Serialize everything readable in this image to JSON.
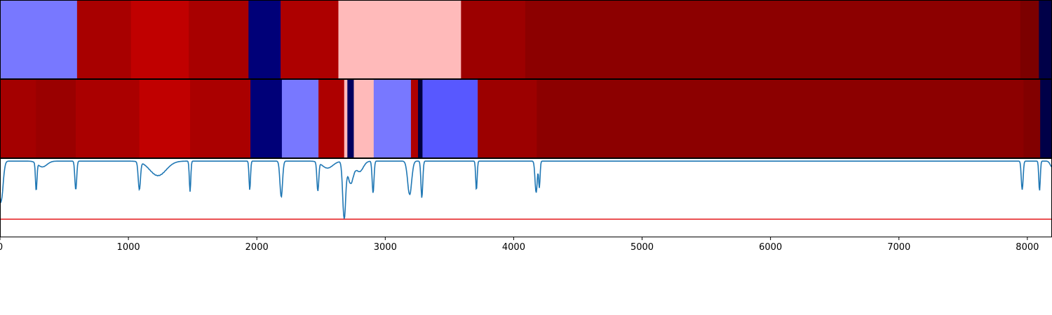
{
  "chart_data": {
    "type": "heatmap",
    "title": "",
    "xlabel": "",
    "ylabel": "",
    "xlim": [
      0,
      8192
    ],
    "x_ticks": [
      {
        "value": 0,
        "label": "0"
      },
      {
        "value": 1000,
        "label": "1000"
      },
      {
        "value": 2000,
        "label": "2000"
      },
      {
        "value": 3000,
        "label": "3000"
      },
      {
        "value": 4000,
        "label": "4000"
      },
      {
        "value": 5000,
        "label": "5000"
      },
      {
        "value": 6000,
        "label": "6000"
      },
      {
        "value": 7000,
        "label": "7000"
      },
      {
        "value": 8000,
        "label": "8000"
      }
    ],
    "segment_tracks": [
      {
        "segments": [
          {
            "start": 0,
            "end": 600,
            "color": "#7878ff"
          },
          {
            "start": 600,
            "end": 1020,
            "color": "#a80000"
          },
          {
            "start": 1020,
            "end": 1470,
            "color": "#c00000"
          },
          {
            "start": 1470,
            "end": 1935,
            "color": "#a80000"
          },
          {
            "start": 1935,
            "end": 2185,
            "color": "#000078"
          },
          {
            "start": 2185,
            "end": 2635,
            "color": "#ad0000"
          },
          {
            "start": 2635,
            "end": 3590,
            "color": "#ffbaba"
          },
          {
            "start": 3590,
            "end": 4090,
            "color": "#9c0000"
          },
          {
            "start": 4090,
            "end": 7945,
            "color": "#8c0000"
          },
          {
            "start": 7945,
            "end": 8090,
            "color": "#7c0000"
          },
          {
            "start": 8090,
            "end": 8192,
            "color": "#000048"
          }
        ]
      },
      {
        "segments": [
          {
            "start": 0,
            "end": 280,
            "color": "#a40000"
          },
          {
            "start": 280,
            "end": 590,
            "color": "#9a0000"
          },
          {
            "start": 590,
            "end": 1085,
            "color": "#aa0000"
          },
          {
            "start": 1085,
            "end": 1480,
            "color": "#c00000"
          },
          {
            "start": 1480,
            "end": 1950,
            "color": "#aa0000"
          },
          {
            "start": 1950,
            "end": 2195,
            "color": "#000078"
          },
          {
            "start": 2195,
            "end": 2480,
            "color": "#7878ff"
          },
          {
            "start": 2480,
            "end": 2680,
            "color": "#ad0000"
          },
          {
            "start": 2680,
            "end": 2705,
            "color": "#ffbaba"
          },
          {
            "start": 2705,
            "end": 2755,
            "color": "#000060"
          },
          {
            "start": 2755,
            "end": 2910,
            "color": "#ffbaba"
          },
          {
            "start": 2910,
            "end": 3200,
            "color": "#7878ff"
          },
          {
            "start": 3200,
            "end": 3255,
            "color": "#b00000"
          },
          {
            "start": 3255,
            "end": 3290,
            "color": "#000040"
          },
          {
            "start": 3290,
            "end": 3720,
            "color": "#5858ff"
          },
          {
            "start": 3720,
            "end": 4180,
            "color": "#9c0000"
          },
          {
            "start": 4180,
            "end": 7970,
            "color": "#8c0000"
          },
          {
            "start": 7970,
            "end": 8100,
            "color": "#820000"
          },
          {
            "start": 8100,
            "end": 8192,
            "color": "#000048"
          }
        ]
      }
    ],
    "signal": {
      "color": "#1f77b4",
      "ylim": [
        -0.3,
        1.05
      ],
      "threshold": {
        "value": 0.0,
        "color": "#e41a1c"
      },
      "baseline": 1.0,
      "dips": [
        {
          "center": 8,
          "depth": 0.7,
          "width": 22
        },
        {
          "center": 282,
          "depth": 0.48,
          "width": 8
        },
        {
          "center": 330,
          "depth": 0.1,
          "width": 50
        },
        {
          "center": 590,
          "depth": 0.5,
          "width": 10
        },
        {
          "center": 1085,
          "depth": 0.48,
          "width": 12
        },
        {
          "center": 1230,
          "depth": 0.25,
          "width": 90
        },
        {
          "center": 1480,
          "depth": 0.52,
          "width": 8
        },
        {
          "center": 1945,
          "depth": 0.5,
          "width": 8
        },
        {
          "center": 2190,
          "depth": 0.62,
          "width": 14
        },
        {
          "center": 2475,
          "depth": 0.5,
          "width": 10
        },
        {
          "center": 2550,
          "depth": 0.12,
          "width": 60
        },
        {
          "center": 2680,
          "depth": 0.98,
          "width": 16
        },
        {
          "center": 2730,
          "depth": 0.38,
          "width": 30
        },
        {
          "center": 2800,
          "depth": 0.18,
          "width": 40
        },
        {
          "center": 2905,
          "depth": 0.55,
          "width": 10
        },
        {
          "center": 3190,
          "depth": 0.58,
          "width": 22
        },
        {
          "center": 3285,
          "depth": 0.63,
          "width": 10
        },
        {
          "center": 3710,
          "depth": 0.5,
          "width": 8
        },
        {
          "center": 4175,
          "depth": 0.55,
          "width": 12
        },
        {
          "center": 4200,
          "depth": 0.45,
          "width": 8
        },
        {
          "center": 7960,
          "depth": 0.5,
          "width": 10
        },
        {
          "center": 8095,
          "depth": 0.52,
          "width": 8
        },
        {
          "center": 8192,
          "depth": 0.1,
          "width": 20
        }
      ]
    }
  }
}
